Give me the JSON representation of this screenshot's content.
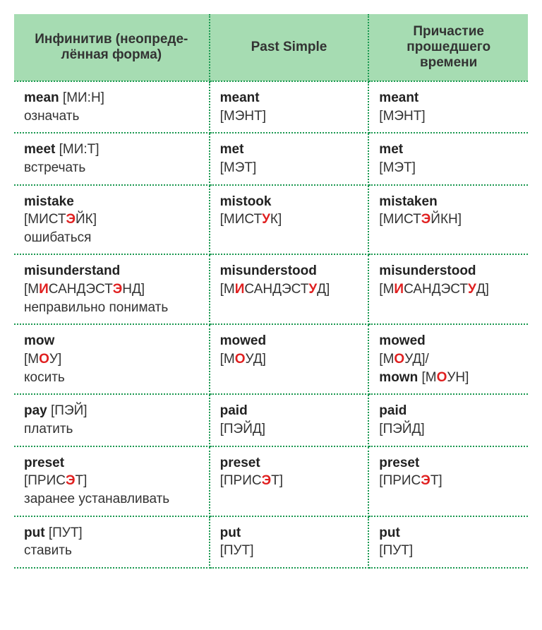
{
  "headers": {
    "col1": "Инфинитив (неопреде­лённая форма)",
    "col2": "Past Simple",
    "col3": "Причастие прошедшего времени"
  },
  "col_widths": [
    "38%",
    "31%",
    "31%"
  ],
  "colors": {
    "header_bg": "#a6dcb2",
    "border": "#1a9850",
    "stress": "#e02020",
    "text": "#333333"
  },
  "rows": [
    {
      "inf": {
        "word": "mean",
        "pron_segments": [
          {
            "t": " [МИ:Н]"
          }
        ],
        "translation": "означать",
        "inline_pron": true
      },
      "past": {
        "word": "meant",
        "pron_segments": [
          {
            "t": "[МЭНТ]"
          }
        ]
      },
      "pp": {
        "word": "meant",
        "pron_segments": [
          {
            "t": "[МЭНТ]"
          }
        ]
      }
    },
    {
      "inf": {
        "word": "meet",
        "pron_segments": [
          {
            "t": " [МИ:Т]"
          }
        ],
        "translation": "встречать",
        "inline_pron": true
      },
      "past": {
        "word": "met",
        "pron_segments": [
          {
            "t": "[МЭТ]"
          }
        ]
      },
      "pp": {
        "word": "met",
        "pron_segments": [
          {
            "t": "[МЭТ]"
          }
        ]
      }
    },
    {
      "inf": {
        "word": "mistake",
        "pron_segments": [
          {
            "t": "[МИСТ"
          },
          {
            "t": "Э",
            "s": true
          },
          {
            "t": "ЙК]"
          }
        ],
        "translation": "ошибаться"
      },
      "past": {
        "word": "mistook",
        "pron_segments": [
          {
            "t": "[МИСТ"
          },
          {
            "t": "У",
            "s": true
          },
          {
            "t": "К]"
          }
        ]
      },
      "pp": {
        "word": "mistaken",
        "pron_segments": [
          {
            "t": "[МИСТ"
          },
          {
            "t": "Э",
            "s": true
          },
          {
            "t": "ЙКН]"
          }
        ]
      }
    },
    {
      "inf": {
        "word": "misunderstand",
        "pron_segments": [
          {
            "t": "[М"
          },
          {
            "t": "И",
            "s": true
          },
          {
            "t": "САНДЭ­СТ"
          },
          {
            "t": "Э",
            "s": true
          },
          {
            "t": "НД]"
          }
        ],
        "translation": "неправильно понимать"
      },
      "past": {
        "word": "misunderstood",
        "pron_segments": [
          {
            "t": "[М"
          },
          {
            "t": "И",
            "s": true
          },
          {
            "t": "САНДЭ­СТ"
          },
          {
            "t": "У",
            "s": true
          },
          {
            "t": "Д]"
          }
        ]
      },
      "pp": {
        "word": "misunderstood",
        "pron_segments": [
          {
            "t": "[М"
          },
          {
            "t": "И",
            "s": true
          },
          {
            "t": "САНДЭ­СТ"
          },
          {
            "t": "У",
            "s": true
          },
          {
            "t": "Д]"
          }
        ]
      }
    },
    {
      "inf": {
        "word": "mow",
        "pron_segments": [
          {
            "t": "[М"
          },
          {
            "t": "О",
            "s": true
          },
          {
            "t": "У]"
          }
        ],
        "translation": "косить"
      },
      "past": {
        "word": "mowed",
        "pron_segments": [
          {
            "t": "[М"
          },
          {
            "t": "О",
            "s": true
          },
          {
            "t": "УД]"
          }
        ]
      },
      "pp": {
        "word": "mowed",
        "pron_segments": [
          {
            "t": "[М"
          },
          {
            "t": "О",
            "s": true
          },
          {
            "t": "УД]/"
          }
        ],
        "extra_word": "mown",
        "extra_pron_segments": [
          {
            "t": " [М"
          },
          {
            "t": "О",
            "s": true
          },
          {
            "t": "УН]"
          }
        ]
      }
    },
    {
      "inf": {
        "word": "pay",
        "pron_segments": [
          {
            "t": " [ПЭЙ]"
          }
        ],
        "translation": "платить",
        "inline_pron": true
      },
      "past": {
        "word": "paid",
        "pron_segments": [
          {
            "t": "[ПЭЙД]"
          }
        ]
      },
      "pp": {
        "word": "paid",
        "pron_segments": [
          {
            "t": "[ПЭЙД]"
          }
        ]
      }
    },
    {
      "inf": {
        "word": "preset",
        "pron_segments": [
          {
            "t": "[ПРИС"
          },
          {
            "t": "Э",
            "s": true
          },
          {
            "t": "Т]"
          }
        ],
        "translation": "заранее уста­навливать"
      },
      "past": {
        "word": "preset",
        "pron_segments": [
          {
            "t": "[ПРИС"
          },
          {
            "t": "Э",
            "s": true
          },
          {
            "t": "Т]"
          }
        ]
      },
      "pp": {
        "word": "preset",
        "pron_segments": [
          {
            "t": "[ПРИС"
          },
          {
            "t": "Э",
            "s": true
          },
          {
            "t": "Т]"
          }
        ]
      }
    },
    {
      "inf": {
        "word": "put",
        "pron_segments": [
          {
            "t": " [ПУТ]"
          }
        ],
        "translation": "ставить",
        "inline_pron": true
      },
      "past": {
        "word": "put",
        "pron_segments": [
          {
            "t": "[ПУТ]"
          }
        ]
      },
      "pp": {
        "word": "put",
        "pron_segments": [
          {
            "t": "[ПУТ]"
          }
        ]
      }
    }
  ]
}
